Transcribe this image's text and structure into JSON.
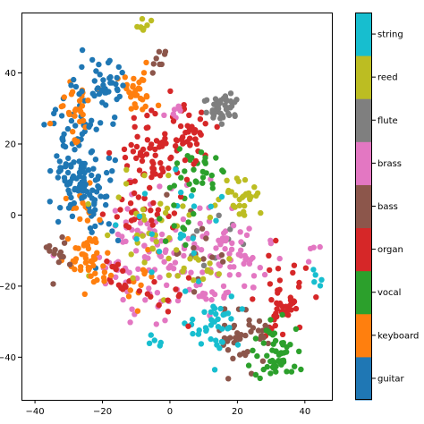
{
  "chart_data": {
    "type": "scatter",
    "title": "",
    "xlabel": "",
    "ylabel": "",
    "xlim": [
      -44,
      48
    ],
    "ylim": [
      -52,
      57
    ],
    "x_ticks": [
      -40,
      -20,
      0,
      20,
      40
    ],
    "y_ticks": [
      -40,
      -20,
      0,
      20,
      40
    ],
    "x_tick_labels": [
      "−40",
      "−20",
      "0",
      "20",
      "40"
    ],
    "y_tick_labels": [
      "−40",
      "−20",
      "0",
      "20",
      "40"
    ],
    "grid": false,
    "legend": "colorbar-right",
    "colorbar": {
      "labels": [
        "guitar",
        "keyboard",
        "vocal",
        "organ",
        "bass",
        "brass",
        "flute",
        "reed",
        "string"
      ],
      "colors": [
        "#1f77b4",
        "#ff7f0e",
        "#2ca02c",
        "#d62728",
        "#8c564b",
        "#e377c2",
        "#7f7f7f",
        "#bcbd22",
        "#17becf"
      ]
    },
    "series": [
      {
        "name": "guitar",
        "color": "#1f77b4",
        "clusters": [
          [
            -20,
            35,
            4,
            4,
            40
          ],
          [
            -27,
            17,
            4,
            9,
            70
          ],
          [
            -26,
            10,
            3,
            4,
            25
          ],
          [
            -21,
            5,
            3,
            6,
            25
          ],
          [
            -30,
            7,
            3,
            5,
            25
          ]
        ]
      },
      {
        "name": "keyboard",
        "color": "#ff7f0e",
        "clusters": [
          [
            -28,
            31,
            3,
            4,
            30
          ],
          [
            -10,
            34,
            3,
            3,
            30
          ],
          [
            -26,
            2,
            2,
            3,
            12
          ],
          [
            -24,
            -13,
            3,
            4,
            45
          ],
          [
            -8,
            -18,
            3,
            4,
            12
          ]
        ]
      },
      {
        "name": "vocal",
        "color": "#2ca02c",
        "clusters": [
          [
            8,
            12,
            3,
            3,
            30
          ],
          [
            32,
            -39,
            4,
            4,
            55
          ],
          [
            4,
            0,
            4,
            4,
            12
          ]
        ]
      },
      {
        "name": "organ",
        "color": "#d62728",
        "clusters": [
          [
            -5,
            16,
            6,
            6,
            80
          ],
          [
            5,
            24,
            4,
            4,
            30
          ],
          [
            -10,
            0,
            4,
            3,
            20
          ],
          [
            -15,
            -18,
            3,
            3,
            15
          ],
          [
            33,
            -25,
            4,
            6,
            50
          ],
          [
            0,
            -24,
            3,
            3,
            12
          ]
        ]
      },
      {
        "name": "bass",
        "color": "#8c564b",
        "clusters": [
          [
            -33,
            -11,
            2,
            3,
            14
          ],
          [
            22,
            -34,
            4,
            4,
            45
          ],
          [
            -3,
            43,
            1.5,
            1.5,
            8
          ],
          [
            5,
            -10,
            6,
            6,
            15
          ]
        ]
      },
      {
        "name": "brass",
        "color": "#e377c2",
        "clusters": [
          [
            -2,
            -10,
            10,
            10,
            120
          ],
          [
            18,
            -14,
            6,
            6,
            60
          ],
          [
            1,
            29,
            2,
            2,
            8
          ],
          [
            43,
            -11,
            1,
            1.5,
            4
          ]
        ]
      },
      {
        "name": "flute",
        "color": "#7f7f7f",
        "clusters": [
          [
            16,
            30,
            3,
            2.5,
            45
          ],
          [
            10,
            -6,
            5,
            5,
            10
          ]
        ]
      },
      {
        "name": "reed",
        "color": "#bcbd22",
        "clusters": [
          [
            -8,
            53,
            1,
            1,
            8
          ],
          [
            21,
            6,
            3,
            3,
            30
          ],
          [
            -5,
            -3,
            8,
            8,
            40
          ],
          [
            10,
            -15,
            5,
            5,
            12
          ]
        ]
      },
      {
        "name": "string",
        "color": "#17becf",
        "clusters": [
          [
            13,
            -30,
            4,
            4,
            40
          ],
          [
            -5,
            -35,
            1.5,
            1.5,
            5
          ],
          [
            43,
            -17,
            1,
            1.5,
            5
          ],
          [
            3,
            -4,
            8,
            8,
            20
          ]
        ]
      }
    ]
  }
}
